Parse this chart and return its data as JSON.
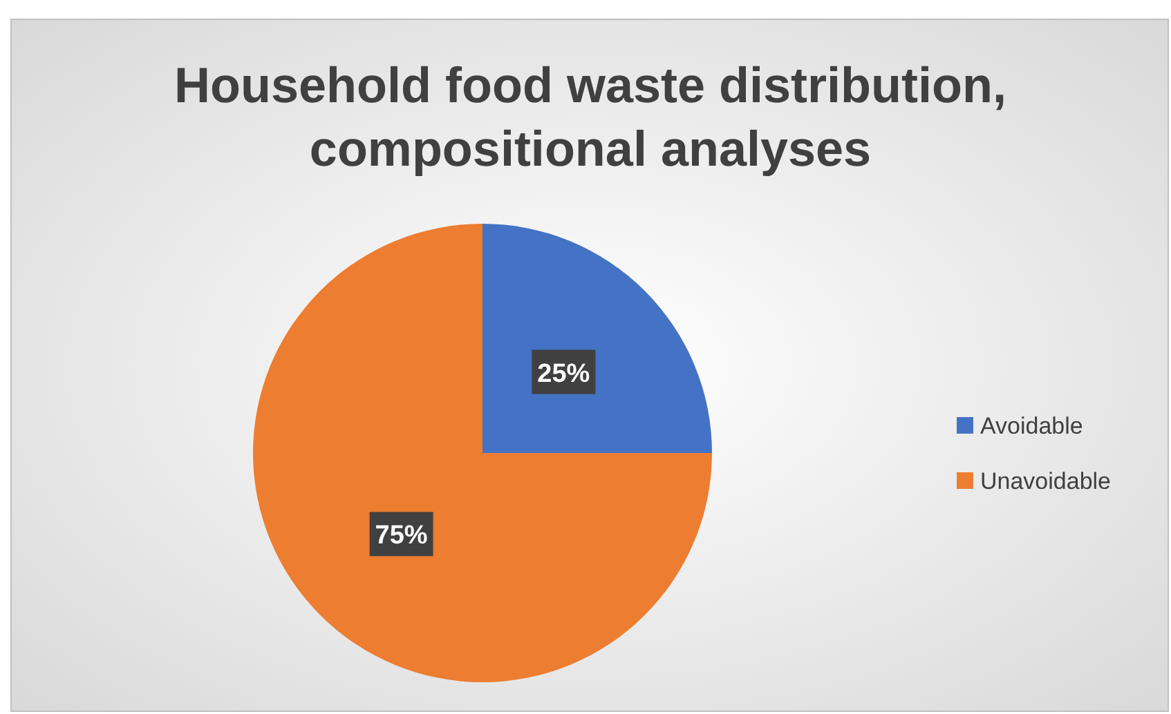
{
  "chart_data": {
    "type": "pie",
    "title": "Household food waste distribution, compositional analyses",
    "categories": [
      "Avoidable",
      "Unavoidable"
    ],
    "values": [
      25,
      75
    ],
    "colors": [
      "#4472c4",
      "#ed7d31"
    ],
    "value_labels": [
      "25%",
      "75%"
    ],
    "legend": "right"
  }
}
